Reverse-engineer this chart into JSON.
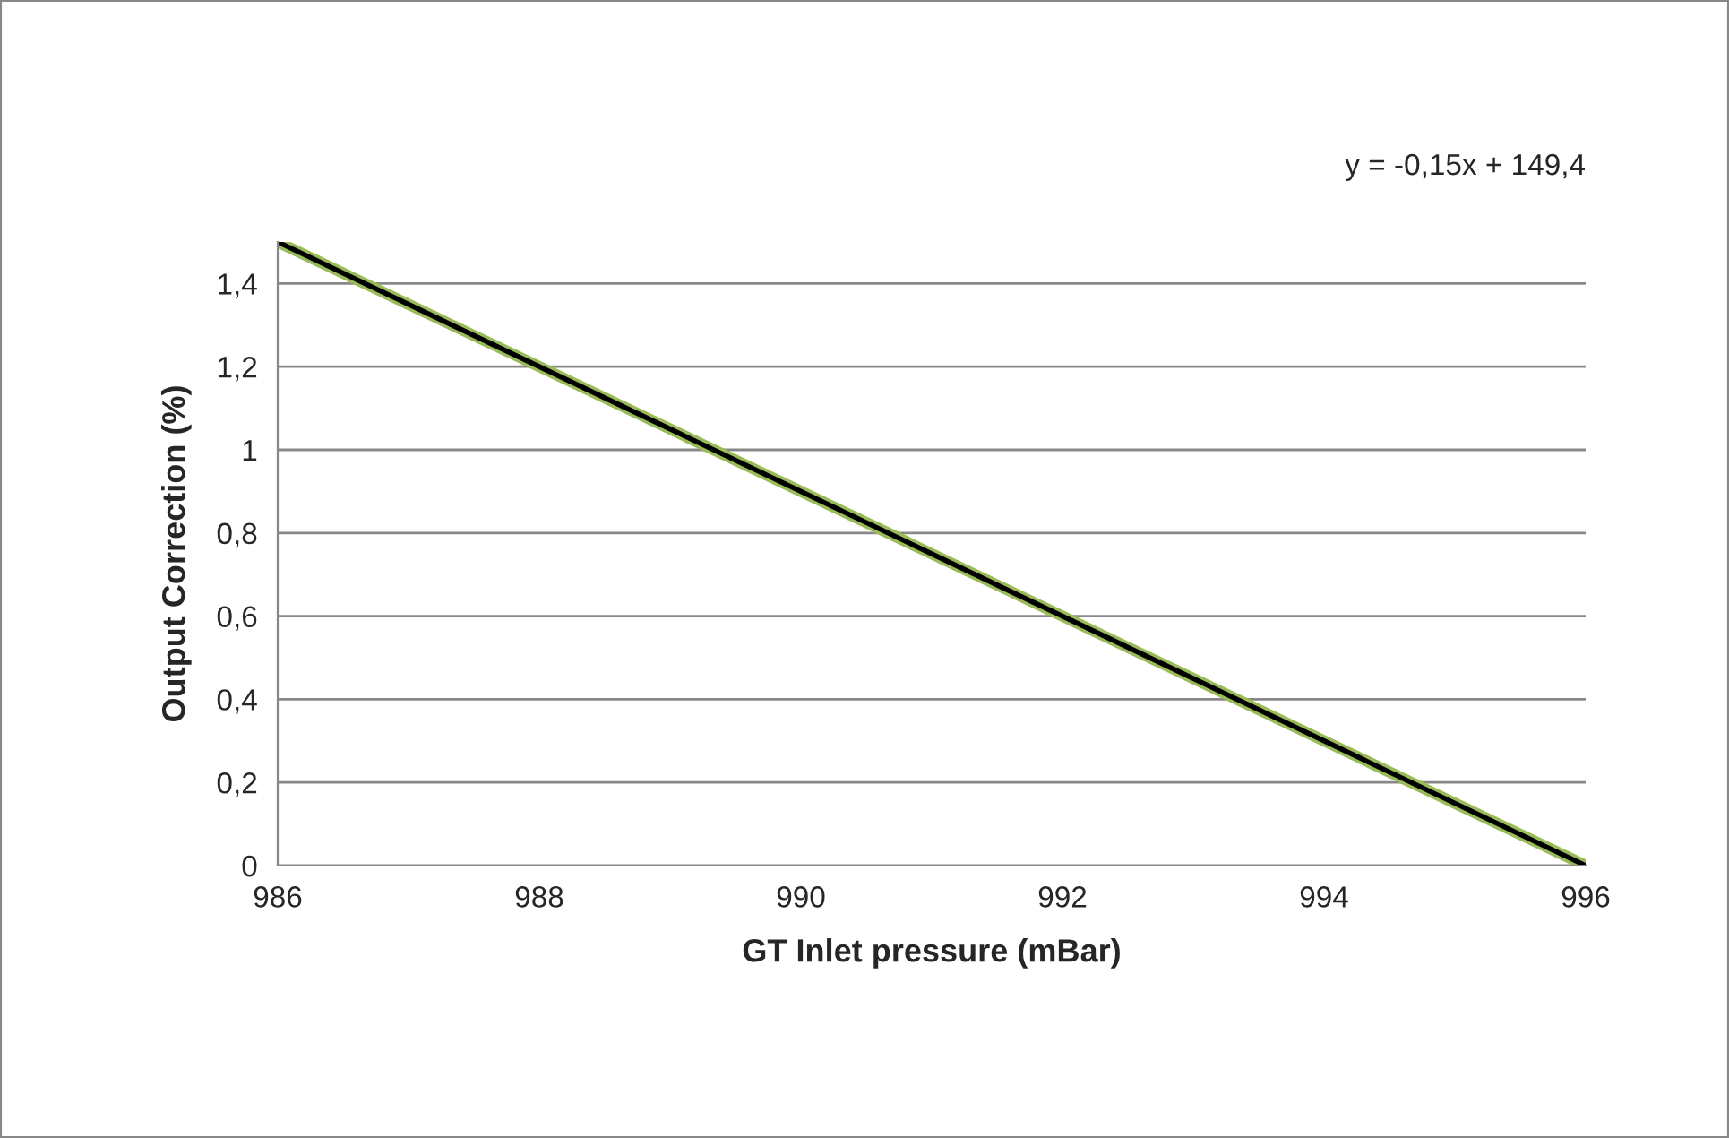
{
  "chart_data": {
    "type": "line",
    "xlabel": "GT Inlet pressure (mBar)",
    "ylabel": "Output Correction (%)",
    "series": [
      {
        "color": "#9bbb59",
        "values": [
          1.5,
          0
        ]
      },
      {
        "color": "#000000",
        "values": [
          1.5,
          0
        ]
      }
    ],
    "x": [
      986,
      996
    ],
    "xlim": [
      986,
      996
    ],
    "xticks": [
      986,
      988,
      990,
      992,
      994,
      996
    ],
    "ylim": [
      0,
      1.5
    ],
    "yticks": [
      0,
      {
        "value": 0.2,
        "label": "0,2"
      },
      {
        "value": 0.4,
        "label": "0,4"
      },
      {
        "value": 0.6,
        "label": "0,6"
      },
      {
        "value": 0.8,
        "label": "0,8"
      },
      1,
      {
        "value": 1.2,
        "label": "1,2"
      },
      {
        "value": 1.4,
        "label": "1,4"
      }
    ],
    "grid": "y",
    "legend": false,
    "annotations": [
      "y = -0,15x + 149,4"
    ]
  }
}
